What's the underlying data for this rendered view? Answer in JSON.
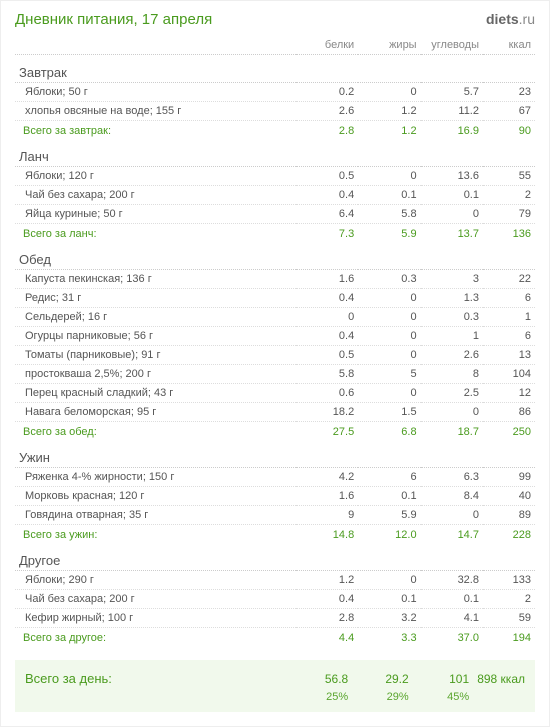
{
  "title": "Дневник питания, 17 апреля",
  "logo": {
    "brand": "diets",
    "tld": ".ru"
  },
  "headers": {
    "name": "",
    "protein": "белки",
    "fat": "жиры",
    "carbs": "углеводы",
    "kcal": "ккал"
  },
  "sections": [
    {
      "title": "Завтрак",
      "items": [
        {
          "name": "Яблоки; 50 г",
          "protein": "0.2",
          "fat": "0",
          "carbs": "5.7",
          "kcal": "23"
        },
        {
          "name": "хлопья овсяные на воде; 155 г",
          "protein": "2.6",
          "fat": "1.2",
          "carbs": "11.2",
          "kcal": "67"
        }
      ],
      "subtotal": {
        "label": "Всего за завтрак:",
        "protein": "2.8",
        "fat": "1.2",
        "carbs": "16.9",
        "kcal": "90"
      }
    },
    {
      "title": "Ланч",
      "items": [
        {
          "name": "Яблоки; 120 г",
          "protein": "0.5",
          "fat": "0",
          "carbs": "13.6",
          "kcal": "55"
        },
        {
          "name": "Чай без сахара; 200 г",
          "protein": "0.4",
          "fat": "0.1",
          "carbs": "0.1",
          "kcal": "2"
        },
        {
          "name": "Яйца куриные; 50 г",
          "protein": "6.4",
          "fat": "5.8",
          "carbs": "0",
          "kcal": "79"
        }
      ],
      "subtotal": {
        "label": "Всего за ланч:",
        "protein": "7.3",
        "fat": "5.9",
        "carbs": "13.7",
        "kcal": "136"
      }
    },
    {
      "title": "Обед",
      "items": [
        {
          "name": "Капуста пекинская; 136 г",
          "protein": "1.6",
          "fat": "0.3",
          "carbs": "3",
          "kcal": "22"
        },
        {
          "name": "Редис; 31 г",
          "protein": "0.4",
          "fat": "0",
          "carbs": "1.3",
          "kcal": "6"
        },
        {
          "name": "Сельдерей; 16 г",
          "protein": "0",
          "fat": "0",
          "carbs": "0.3",
          "kcal": "1"
        },
        {
          "name": "Огурцы парниковые; 56 г",
          "protein": "0.4",
          "fat": "0",
          "carbs": "1",
          "kcal": "6"
        },
        {
          "name": "Томаты (парниковые); 91 г",
          "protein": "0.5",
          "fat": "0",
          "carbs": "2.6",
          "kcal": "13"
        },
        {
          "name": "простокваша 2,5%; 200 г",
          "protein": "5.8",
          "fat": "5",
          "carbs": "8",
          "kcal": "104"
        },
        {
          "name": "Перец красный сладкий; 43 г",
          "protein": "0.6",
          "fat": "0",
          "carbs": "2.5",
          "kcal": "12"
        },
        {
          "name": "Навага беломорская; 95 г",
          "protein": "18.2",
          "fat": "1.5",
          "carbs": "0",
          "kcal": "86"
        }
      ],
      "subtotal": {
        "label": "Всего за обед:",
        "protein": "27.5",
        "fat": "6.8",
        "carbs": "18.7",
        "kcal": "250"
      }
    },
    {
      "title": "Ужин",
      "items": [
        {
          "name": "Ряженка 4-% жирности; 150 г",
          "protein": "4.2",
          "fat": "6",
          "carbs": "6.3",
          "kcal": "99"
        },
        {
          "name": "Морковь красная; 120 г",
          "protein": "1.6",
          "fat": "0.1",
          "carbs": "8.4",
          "kcal": "40"
        },
        {
          "name": "Говядина отварная; 35 г",
          "protein": "9",
          "fat": "5.9",
          "carbs": "0",
          "kcal": "89"
        }
      ],
      "subtotal": {
        "label": "Всего за ужин:",
        "protein": "14.8",
        "fat": "12.0",
        "carbs": "14.7",
        "kcal": "228"
      }
    },
    {
      "title": "Другое",
      "items": [
        {
          "name": "Яблоки; 290 г",
          "protein": "1.2",
          "fat": "0",
          "carbs": "32.8",
          "kcal": "133"
        },
        {
          "name": "Чай без сахара; 200 г",
          "protein": "0.4",
          "fat": "0.1",
          "carbs": "0.1",
          "kcal": "2"
        },
        {
          "name": "Кефир жирный; 100 г",
          "protein": "2.8",
          "fat": "3.2",
          "carbs": "4.1",
          "kcal": "59"
        }
      ],
      "subtotal": {
        "label": "Всего за другое:",
        "protein": "4.4",
        "fat": "3.3",
        "carbs": "37.0",
        "kcal": "194"
      }
    }
  ],
  "day_total": {
    "label": "Всего за день:",
    "protein": "56.8",
    "fat": "29.2",
    "carbs": "101",
    "kcal": "898 ккал",
    "pct_protein": "25%",
    "pct_fat": "29%",
    "pct_carbs": "45%"
  }
}
